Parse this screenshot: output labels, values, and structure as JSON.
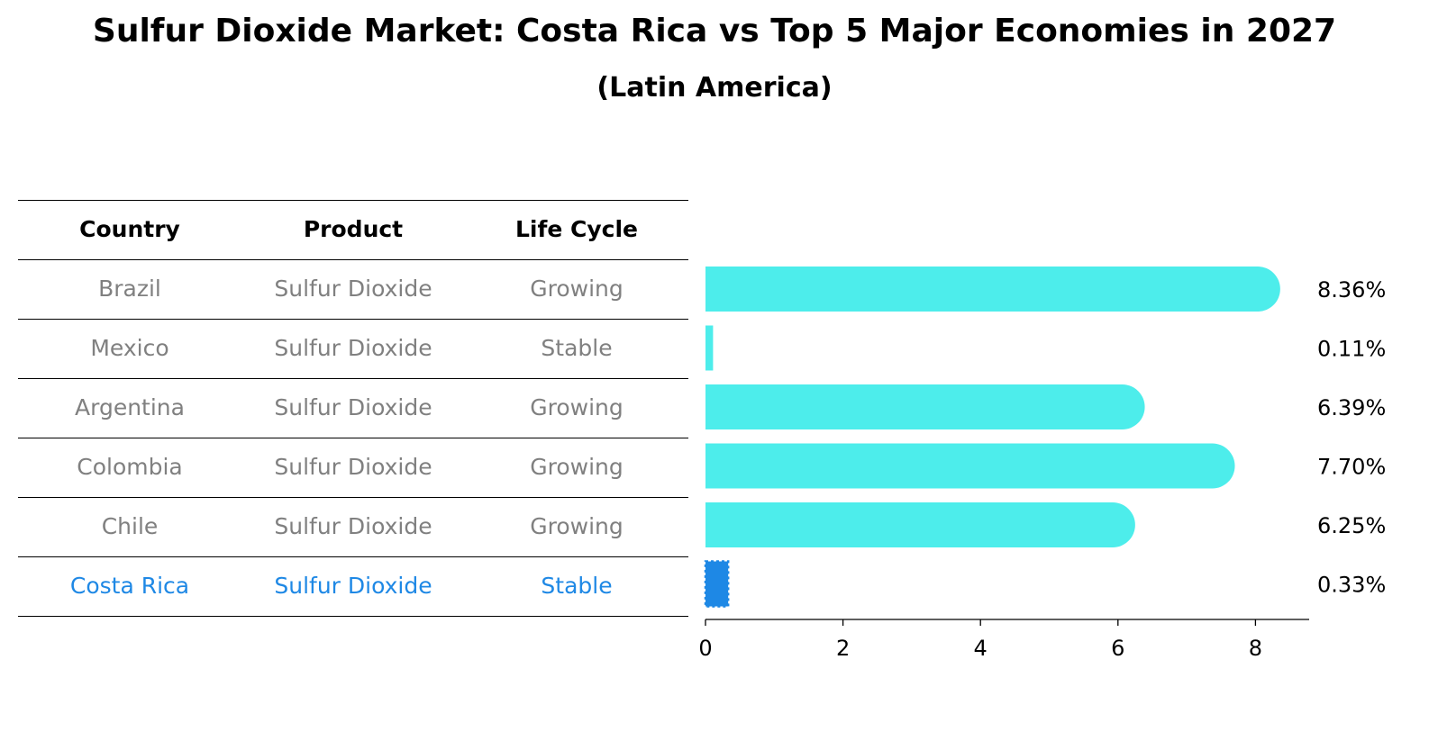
{
  "title": "Sulfur Dioxide Market: Costa Rica vs Top 5 Major Economies in 2027",
  "subtitle": "(Latin America)",
  "table": {
    "headers": [
      "Country",
      "Product",
      "Life Cycle"
    ],
    "rows": [
      {
        "country": "Brazil",
        "product": "Sulfur Dioxide",
        "life_cycle": "Growing",
        "highlight": false
      },
      {
        "country": "Mexico",
        "product": "Sulfur Dioxide",
        "life_cycle": "Stable",
        "highlight": false
      },
      {
        "country": "Argentina",
        "product": "Sulfur Dioxide",
        "life_cycle": "Growing",
        "highlight": false
      },
      {
        "country": "Colombia",
        "product": "Sulfur Dioxide",
        "life_cycle": "Growing",
        "highlight": false
      },
      {
        "country": "Chile",
        "product": "Sulfur Dioxide",
        "life_cycle": "Growing",
        "highlight": false
      },
      {
        "country": "Costa Rica",
        "product": "Sulfur Dioxide",
        "life_cycle": "Stable",
        "highlight": true
      }
    ]
  },
  "colors": {
    "bar": "#4dedeb",
    "highlight": "#1e88e5",
    "muted_text": "#808080"
  },
  "chart_data": {
    "type": "bar",
    "orientation": "horizontal",
    "categories": [
      "Brazil",
      "Mexico",
      "Argentina",
      "Colombia",
      "Chile",
      "Costa Rica"
    ],
    "values": [
      8.36,
      0.11,
      6.39,
      7.7,
      6.25,
      0.33
    ],
    "value_labels": [
      "8.36%",
      "0.11%",
      "6.39%",
      "7.70%",
      "6.25%",
      "0.33%"
    ],
    "highlight_category": "Costa Rica",
    "xlim": [
      0,
      8.8
    ],
    "xticks": [
      0,
      2,
      4,
      6,
      8
    ],
    "xtick_labels": [
      "0",
      "2",
      "4",
      "6",
      "8"
    ],
    "title": "Sulfur Dioxide Market: Costa Rica vs Top 5 Major Economies in 2027",
    "xlabel": "",
    "ylabel": "",
    "grid": false
  }
}
